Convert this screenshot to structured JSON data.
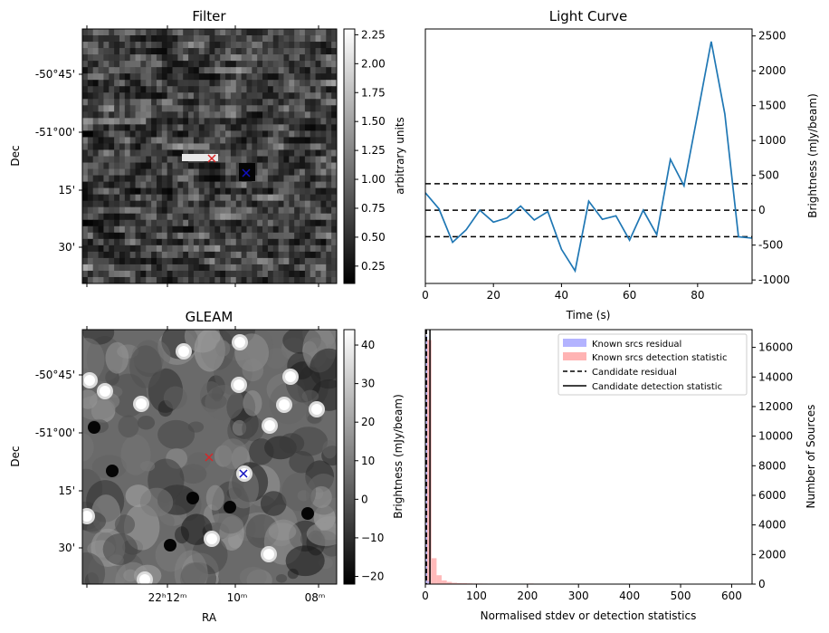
{
  "chart_data": [
    {
      "type": "heatmap",
      "title": "Filter",
      "ylabel": "Dec",
      "yticks": [
        "-50°45'",
        "-51°00'",
        "15'",
        "30'"
      ],
      "colorbar": {
        "label": "arbitrary units",
        "range": [
          0.1,
          2.3
        ],
        "ticks": [
          "0.25",
          "0.50",
          "0.75",
          "1.00",
          "1.25",
          "1.50",
          "1.75",
          "2.00",
          "2.25"
        ],
        "colormap": "greys"
      },
      "markers": [
        {
          "symbol": "x",
          "color": "#d62728"
        },
        {
          "symbol": "x",
          "color": "#1010c0"
        }
      ]
    },
    {
      "type": "line",
      "title": "Light Curve",
      "xlabel": "Time (s)",
      "ylabel": "Brightness (mJy/beam)",
      "xlim": [
        0,
        96
      ],
      "ylim": [
        -1050,
        2600
      ],
      "xticks": [
        "0",
        "20",
        "40",
        "60",
        "80"
      ],
      "yticks": [
        "-1000",
        "-500",
        "0",
        "500",
        "1000",
        "1500",
        "2000",
        "2500"
      ],
      "x": [
        0,
        4,
        8,
        12,
        16,
        20,
        24,
        28,
        32,
        36,
        40,
        44,
        48,
        52,
        56,
        60,
        64,
        68,
        72,
        76,
        80,
        84,
        88,
        92,
        96
      ],
      "y": [
        250,
        20,
        -460,
        -280,
        0,
        -170,
        -110,
        60,
        -140,
        -20,
        -560,
        -870,
        130,
        -130,
        -80,
        -430,
        0,
        -350,
        730,
        350,
        1380,
        2420,
        1380,
        -380,
        -400
      ],
      "hlines": [
        380,
        0,
        -380
      ],
      "line_color": "#1f77b4"
    },
    {
      "type": "heatmap",
      "title": "GLEAM",
      "xlabel": "RA",
      "ylabel": "Dec",
      "xticks": [
        "22ʰ12ᵐ",
        "10ᵐ",
        "08ᵐ"
      ],
      "yticks": [
        "-50°45'",
        "-51°00'",
        "15'",
        "30'"
      ],
      "colorbar": {
        "label": "Brightness (mJy/beam)",
        "range": [
          -22,
          44
        ],
        "ticks": [
          "−20",
          "−10",
          "0",
          "10",
          "20",
          "30",
          "40"
        ],
        "colormap": "greys"
      },
      "markers": [
        {
          "symbol": "x",
          "color": "#d62728"
        },
        {
          "symbol": "x",
          "color": "#1010c0"
        }
      ]
    },
    {
      "type": "bar",
      "xlabel": "Normalised stdev or detection statistics",
      "ylabel": "Number of Sources",
      "xlim": [
        0,
        640
      ],
      "ylim": [
        0,
        17200
      ],
      "xticks": [
        "0",
        "100",
        "200",
        "300",
        "400",
        "500",
        "600"
      ],
      "yticks": [
        "0",
        "2000",
        "4000",
        "6000",
        "8000",
        "10000",
        "12000",
        "14000",
        "16000"
      ],
      "legend_position": "top-right",
      "series": [
        {
          "name": "Known srcs residual",
          "color": "#b3b3ff",
          "x": [
            2,
            6
          ],
          "values": [
            16800,
            200
          ]
        },
        {
          "name": "Known srcs detection statistic",
          "color": "#ffb3b3",
          "x": [
            7,
            17,
            27,
            37,
            47,
            57,
            67,
            77,
            87,
            97,
            107,
            117,
            127,
            137,
            147,
            157,
            167,
            177,
            187,
            197,
            207,
            217,
            227,
            237,
            247,
            300,
            605
          ],
          "values": [
            16500,
            1750,
            600,
            250,
            150,
            90,
            70,
            60,
            50,
            40,
            40,
            35,
            30,
            30,
            25,
            25,
            20,
            20,
            15,
            15,
            40,
            15,
            10,
            10,
            10,
            8,
            30
          ]
        }
      ],
      "vlines": [
        {
          "name": "Candidate residual",
          "x": 2,
          "style": "dashed"
        },
        {
          "name": "Candidate detection statistic",
          "x": 9,
          "style": "solid"
        }
      ]
    }
  ]
}
